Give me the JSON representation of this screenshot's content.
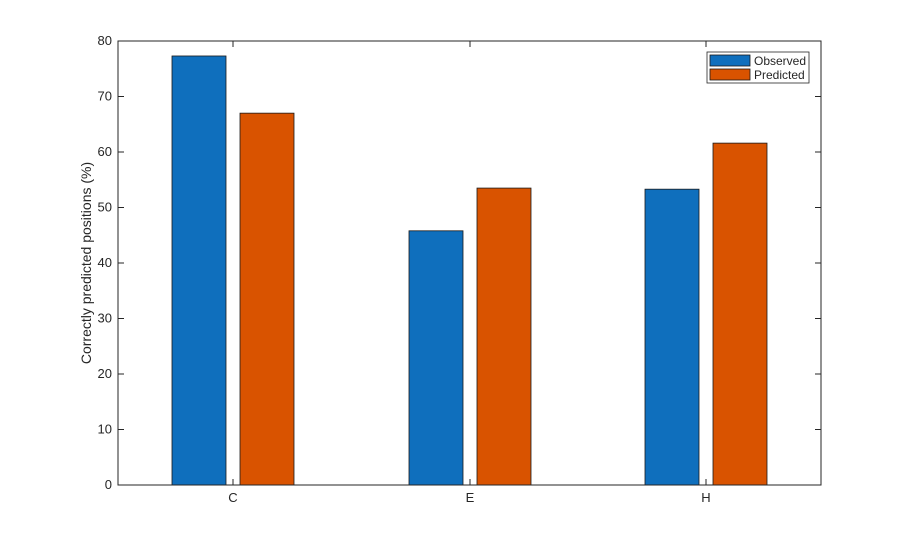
{
  "chart_data": {
    "type": "bar",
    "categories": [
      "C",
      "E",
      "H"
    ],
    "series": [
      {
        "name": "Observed",
        "values": [
          77.3,
          45.8,
          53.3
        ],
        "color": "#0f6fbd"
      },
      {
        "name": "Predicted",
        "values": [
          67.0,
          53.5,
          61.6
        ],
        "color": "#d95300"
      }
    ],
    "title": "",
    "xlabel": "",
    "ylabel": "Correctly predicted positions (%)",
    "ylim": [
      0,
      80
    ],
    "yticks": [
      0,
      10,
      20,
      30,
      40,
      50,
      60,
      70,
      80
    ],
    "grid": false,
    "legend": {
      "placement": "top-right"
    }
  }
}
